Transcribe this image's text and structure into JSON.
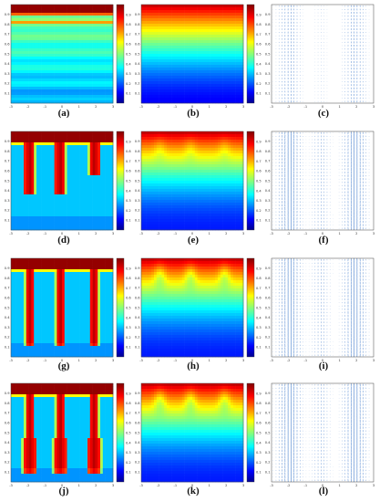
{
  "figure": {
    "rows": [
      {
        "panels": [
          {
            "label": "(a)",
            "kind": "field",
            "pattern": "layers"
          },
          {
            "label": "(b)",
            "kind": "field",
            "pattern": "gradient"
          },
          {
            "label": "(c)",
            "kind": "vector",
            "pattern": "vectors-weak"
          }
        ]
      },
      {
        "panels": [
          {
            "label": "(d)",
            "kind": "field",
            "pattern": "plumes-early"
          },
          {
            "label": "(e)",
            "kind": "field",
            "pattern": "gradient-bumps"
          },
          {
            "label": "(f)",
            "kind": "vector",
            "pattern": "vectors-plumes"
          }
        ]
      },
      {
        "panels": [
          {
            "label": "(g)",
            "kind": "field",
            "pattern": "plumes-mid"
          },
          {
            "label": "(h)",
            "kind": "field",
            "pattern": "gradient-waves"
          },
          {
            "label": "(i)",
            "kind": "vector",
            "pattern": "vectors-strong"
          }
        ]
      },
      {
        "panels": [
          {
            "label": "(j)",
            "kind": "field",
            "pattern": "plumes-late"
          },
          {
            "label": "(k)",
            "kind": "field",
            "pattern": "gradient-waves"
          },
          {
            "label": "(l)",
            "kind": "vector",
            "pattern": "vectors-strong"
          }
        ]
      }
    ],
    "x_ticks": [
      "-3",
      "-2",
      "-1",
      "0",
      "1",
      "2",
      "3"
    ],
    "y_ticks": [
      "0.1",
      "0.2",
      "0.3",
      "0.4",
      "0.5",
      "0.6",
      "0.7",
      "0.8",
      "0.9"
    ],
    "colorbar_ticks": [
      "0.1",
      "0.2",
      "0.3",
      "0.4",
      "0.5",
      "0.6",
      "0.7",
      "0.8",
      "0.9"
    ],
    "colors": {
      "colormap": [
        "#00008f",
        "#0000ff",
        "#0080ff",
        "#00ffff",
        "#80ff80",
        "#ffff00",
        "#ff8000",
        "#ff0000",
        "#800000"
      ],
      "vector": "#2f6fc7",
      "axis": "#444444"
    }
  }
}
